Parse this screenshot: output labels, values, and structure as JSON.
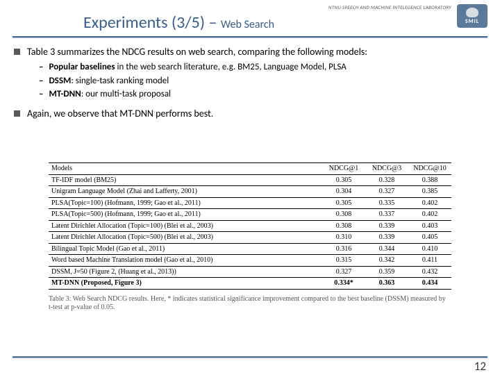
{
  "header": {
    "lab": "NTNU SPEECH AND MACHINE INTELEGENCE LABORATORY",
    "logo_text": "SMIL",
    "title_main": "Experiments (3/5) – ",
    "title_sub": "Web Search"
  },
  "bullets": {
    "b1": "Table 3 summarizes the NDCG results on web search, comparing the following models:",
    "sub1_bold": "Popular baselines",
    "sub1_rest": " in the web search literature, e.g. BM25, Language Model, PLSA",
    "sub2_bold": "DSSM",
    "sub2_rest": ": single-task ranking model",
    "sub3_bold": "MT-DNN",
    "sub3_rest": ": our multi-task proposal",
    "b2": "Again, we observe that MT-DNN performs best."
  },
  "table": {
    "h_models": "Models",
    "h_n1": "NDCG@1",
    "h_n3": "NDCG@3",
    "h_n10": "NDCG@10",
    "rows": [
      {
        "m": "TF-IDF model (BM25)",
        "n1": "0.305",
        "n3": "0.328",
        "n10": "0.388"
      },
      {
        "m": "Unigram Language Model (Zhai and Lafferty, 2001)",
        "n1": "0.304",
        "n3": "0.327",
        "n10": "0.385"
      },
      {
        "m": "PLSA(Topic=100) (Hofmann, 1999; Gao et al., 2011)",
        "n1": "0.305",
        "n3": "0.335",
        "n10": "0.402"
      },
      {
        "m": "PLSA(Topic=500) (Hofmann, 1999; Gao et al., 2011)",
        "n1": "0.308",
        "n3": "0.337",
        "n10": "0.402"
      },
      {
        "m": "Latent Dirichlet Allocation (Topic=100) (Blei et al., 2003)",
        "n1": "0.308",
        "n3": "0.339",
        "n10": "0.403"
      },
      {
        "m": "Latent Dirichlet Allocation (Topic=500) (Blei et al., 2003)",
        "n1": "0.310",
        "n3": "0.339",
        "n10": "0.405"
      },
      {
        "m": "Bilingual Topic Model (Gao et al., 2011)",
        "n1": "0.316",
        "n3": "0.344",
        "n10": "0.410"
      },
      {
        "m": "Word based Machine Translation model (Gao et al., 2010)",
        "n1": "0.315",
        "n3": "0.342",
        "n10": "0.411"
      },
      {
        "m": "DSSM, J=50 (Figure 2, (Huang et al., 2013))",
        "n1": "0.327",
        "n3": "0.359",
        "n10": "0.432"
      },
      {
        "m": "MT-DNN (Proposed, Figure 3)",
        "n1": "0.334*",
        "n3": "0.363",
        "n10": "0.434",
        "bold": true
      }
    ],
    "caption": "Table 3: Web Search NDCG results. Here, * indicates statistical significance improvement compared to the best baseline (DSSM) measured by t-test at p-value of 0.05."
  },
  "page": "12"
}
